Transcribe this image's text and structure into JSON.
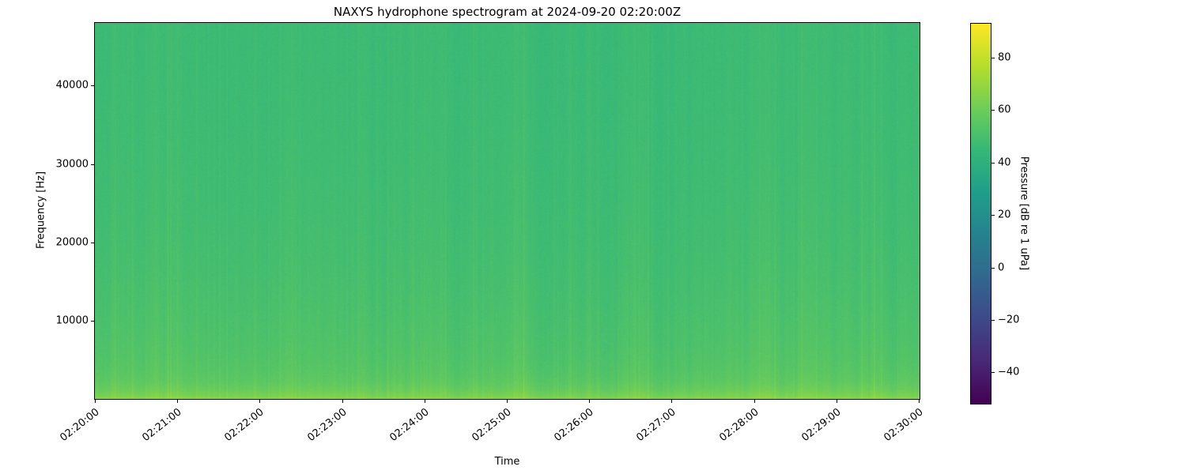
{
  "chart_data": {
    "type": "heatmap",
    "title": "NAXYS hydrophone spectrogram at 2024-09-20 02:20:00Z",
    "xlabel": "Time",
    "ylabel": "Frequency [Hz]",
    "x_ticks": [
      "02:20:00",
      "02:21:00",
      "02:22:00",
      "02:23:00",
      "02:24:00",
      "02:25:00",
      "02:26:00",
      "02:27:00",
      "02:28:00",
      "02:29:00",
      "02:30:00"
    ],
    "y_ticks": [
      10000,
      20000,
      30000,
      40000
    ],
    "y_range_hz": [
      0,
      48000
    ],
    "time_range": [
      "02:20:00",
      "02:30:00"
    ],
    "grid": false,
    "colormap": "viridis",
    "colormap_stops": [
      "#440154",
      "#482878",
      "#3e4989",
      "#31688e",
      "#26828e",
      "#1f9e89",
      "#35b779",
      "#6ece58",
      "#b5de2b",
      "#fde725"
    ],
    "colorbar": {
      "label": "Pressure [dB re 1 uPa]",
      "ticks": [
        80,
        60,
        40,
        20,
        0,
        -20,
        -40
      ],
      "vmin": -52,
      "vmax": 93,
      "position": "right"
    },
    "field": {
      "description": "Broadband ambient noise field, mostly uniform green (~45-55 dB) across 0-48 kHz for the full 10 minutes, with faint vertical striations (transient broadband clicks) and a brighter yellow-green low-frequency band below ~2 kHz (~60-67 dB); levels increase gradually toward low frequencies.",
      "base_db": 46.5,
      "broad_lowfreq_boost_db": 9,
      "broad_lowfreq_scale_hz": 15000,
      "bottom_band_boost_db": 11,
      "bottom_band_scale_hz": 1300,
      "pixel_noise_db": 2.6,
      "column_noise_db": 1.8,
      "seed": 1234,
      "streaks": [
        {
          "x_frac": 0.045,
          "boost_db": 2.2
        },
        {
          "x_frac": 0.1,
          "boost_db": 1.6
        },
        {
          "x_frac": 0.225,
          "boost_db": 1.8
        },
        {
          "x_frac": 0.305,
          "boost_db": 2.0
        },
        {
          "x_frac": 0.355,
          "boost_db": 2.4
        },
        {
          "x_frac": 0.425,
          "boost_db": 1.7
        },
        {
          "x_frac": 0.52,
          "boost_db": 4.5
        },
        {
          "x_frac": 0.6,
          "boost_db": 1.8
        },
        {
          "x_frac": 0.655,
          "boost_db": 2.2
        },
        {
          "x_frac": 0.74,
          "boost_db": 1.6
        },
        {
          "x_frac": 0.825,
          "boost_db": 2.0
        },
        {
          "x_frac": 0.875,
          "boost_db": 2.3
        },
        {
          "x_frac": 0.945,
          "boost_db": 1.9
        }
      ]
    }
  }
}
